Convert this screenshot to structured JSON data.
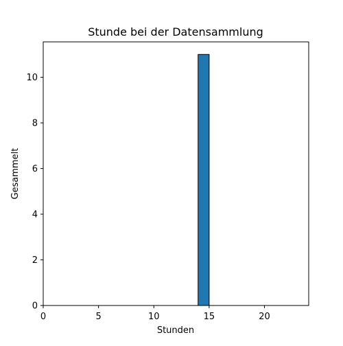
{
  "chart_data": {
    "type": "bar",
    "title": "Stunde bei der Datensammlung",
    "xlabel": "Stunden",
    "ylabel": "Gesammelt",
    "xlim": [
      0,
      24
    ],
    "ylim": [
      0,
      11.55
    ],
    "xticks": [
      0,
      5,
      10,
      15,
      20
    ],
    "yticks": [
      0,
      2,
      4,
      6,
      8,
      10
    ],
    "bins": [
      {
        "x0": 14,
        "x1": 15,
        "value": 11
      }
    ],
    "grid": false,
    "bar_color": "#1f77b4",
    "bar_edge_color": "#000000"
  }
}
